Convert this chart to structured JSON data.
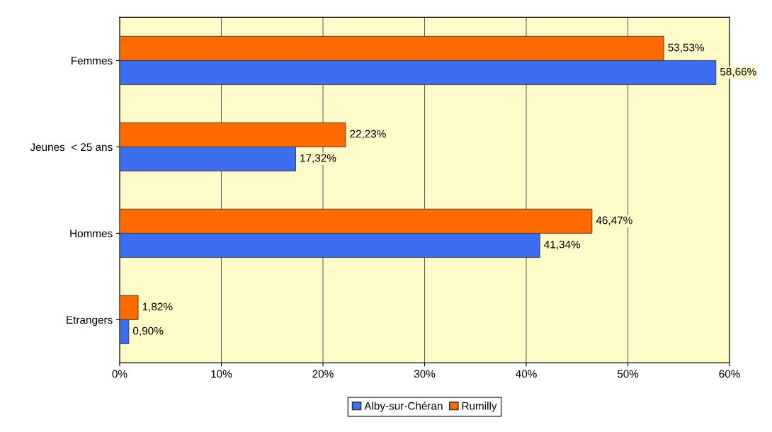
{
  "chart_data": {
    "type": "bar",
    "orientation": "horizontal",
    "categories": [
      "Femmes",
      "Jeunes  < 25 ans",
      "Hommes",
      "Etrangers"
    ],
    "series": [
      {
        "name": "Alby-sur-Chéran",
        "color": "#3d6ef0",
        "values": [
          58.66,
          17.32,
          41.34,
          0.9
        ],
        "value_labels": [
          "58,66%",
          "17,32%",
          "41,34%",
          "0,90%"
        ]
      },
      {
        "name": "Rumilly",
        "color": "#ff6a00",
        "values": [
          53.53,
          22.23,
          46.47,
          1.82
        ],
        "value_labels": [
          "53,53%",
          "22,23%",
          "46,47%",
          "1,82%"
        ]
      }
    ],
    "xlim": [
      0,
      60
    ],
    "xticks": [
      {
        "value": 0,
        "label": "0%"
      },
      {
        "value": 10,
        "label": "10%"
      },
      {
        "value": 20,
        "label": "20%"
      },
      {
        "value": 30,
        "label": "30%"
      },
      {
        "value": 40,
        "label": "40%"
      },
      {
        "value": 50,
        "label": "50%"
      },
      {
        "value": 60,
        "label": "60%"
      }
    ],
    "grid": "x",
    "legend": "bottom"
  }
}
